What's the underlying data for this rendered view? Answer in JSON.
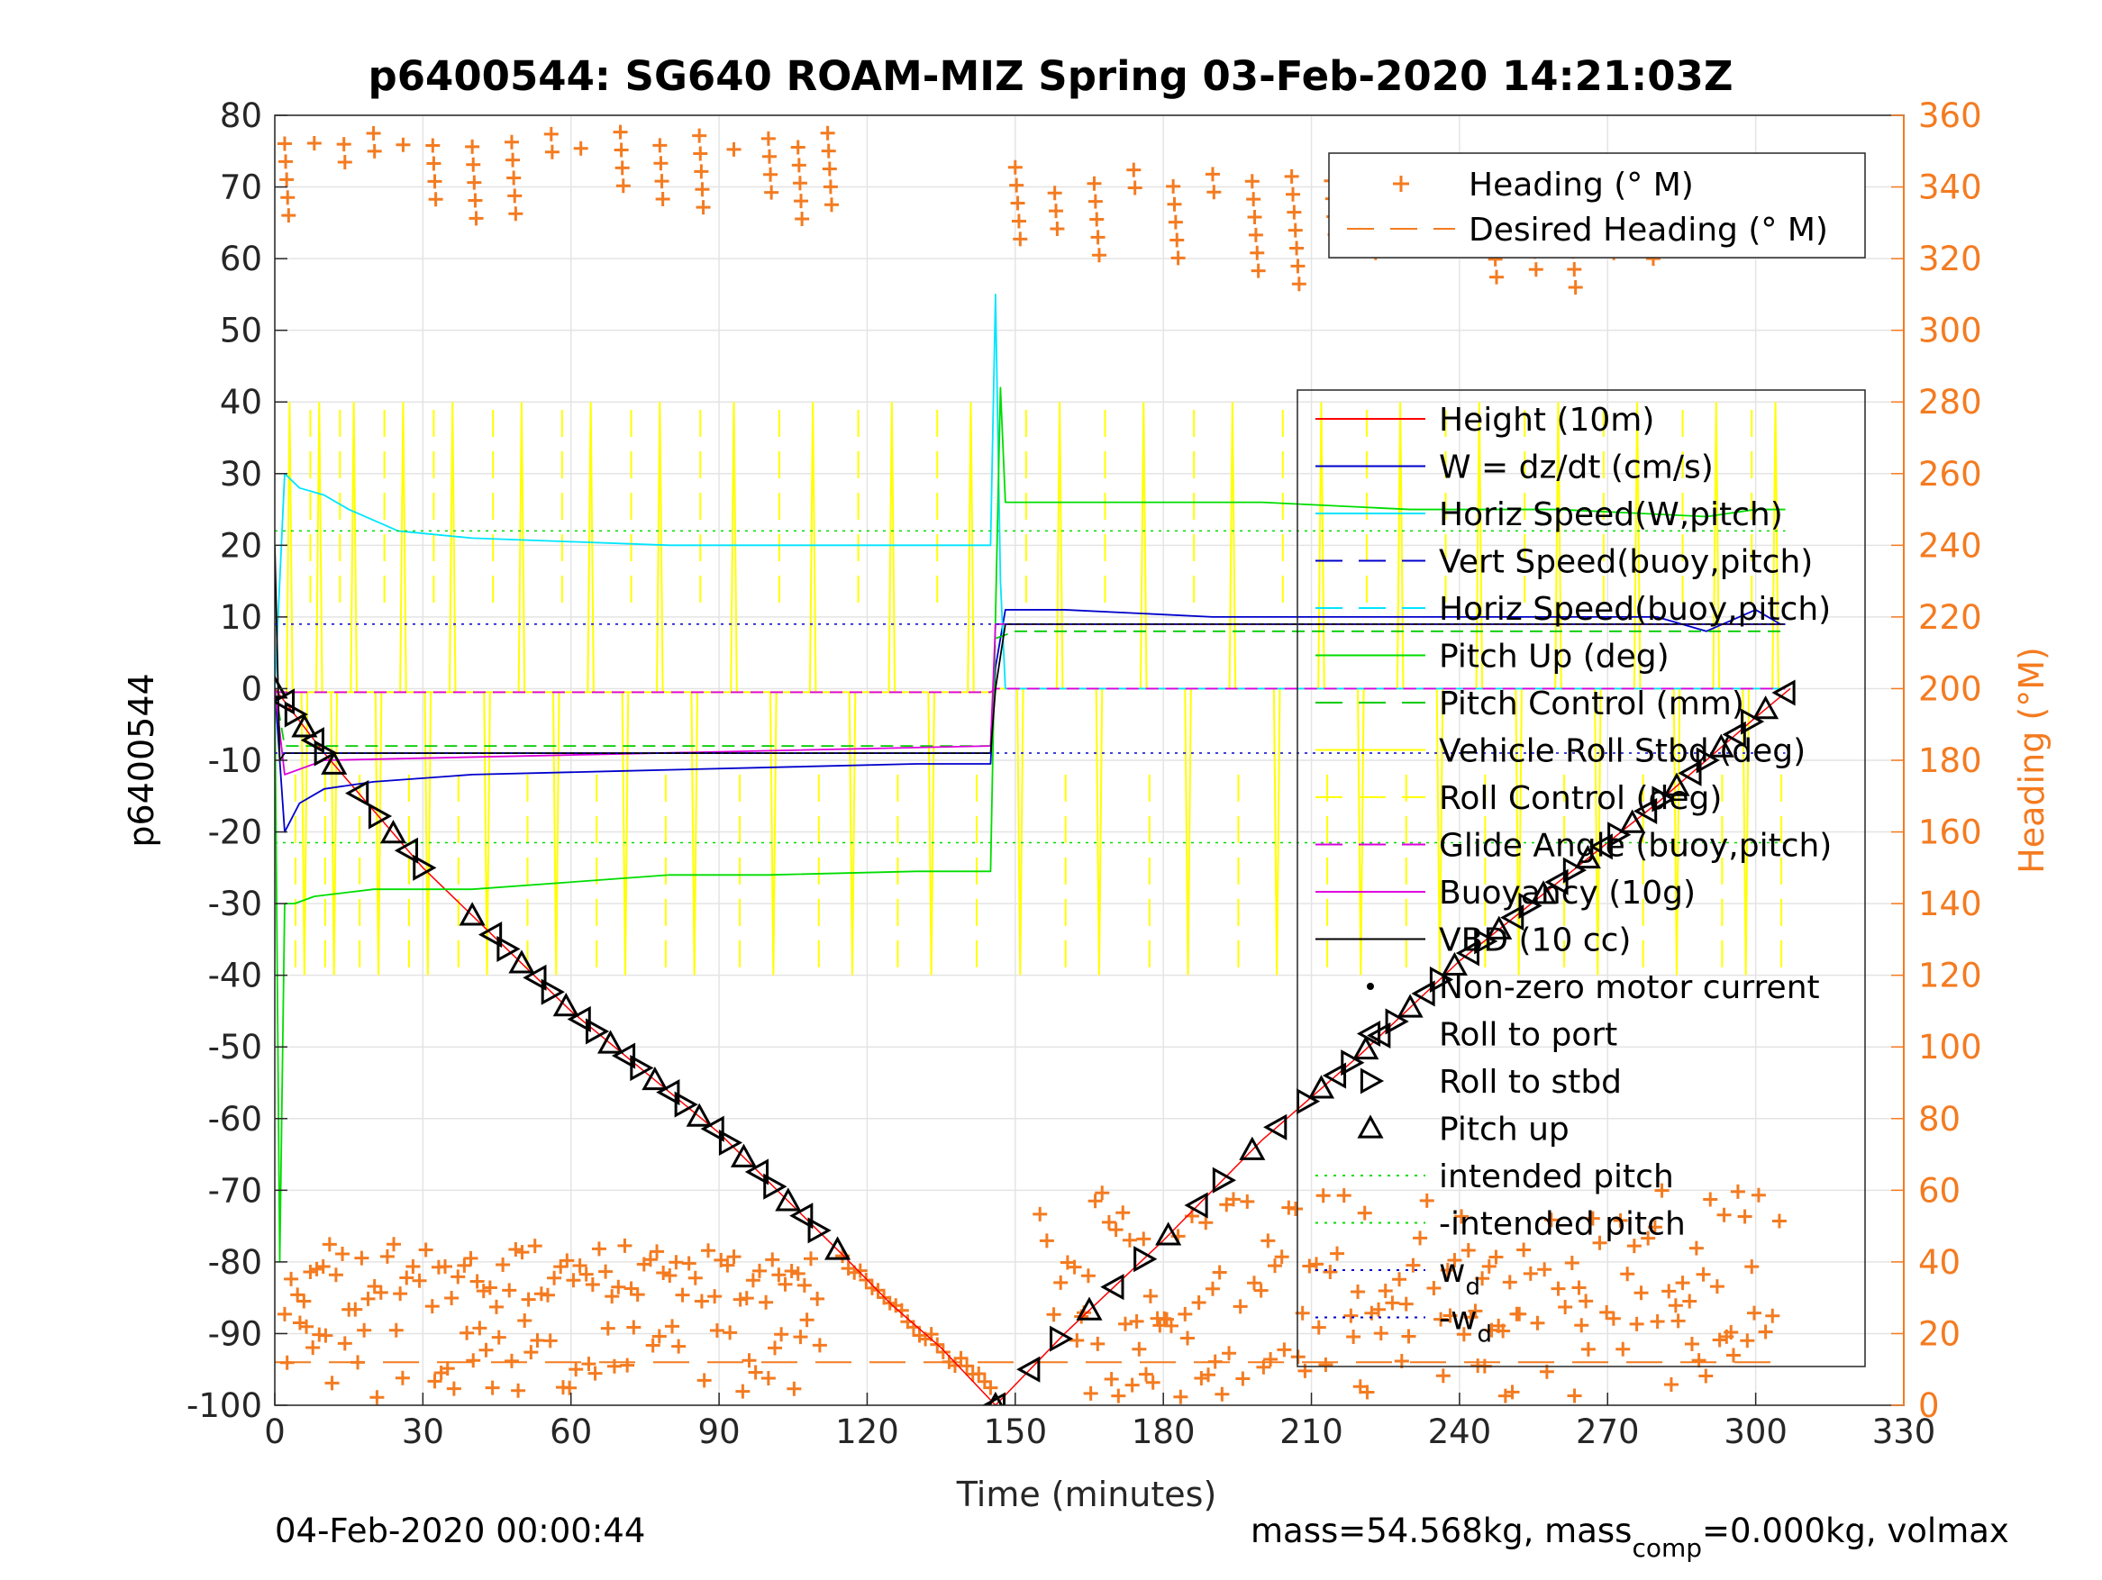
{
  "chart_data": {
    "type": "line",
    "title": "p6400544: SG640 ROAM-MIZ Spring 03-Feb-2020 14:21:03Z",
    "xlabel": "Time (minutes)",
    "ylabel_left": "p6400544",
    "ylabel_right": "Heading (°M)",
    "xlim": [
      0,
      330
    ],
    "ylim_left": [
      -100,
      80
    ],
    "ylim_right": [
      0,
      360
    ],
    "x_ticks": [
      0,
      30,
      60,
      90,
      120,
      150,
      180,
      210,
      240,
      270,
      300,
      330
    ],
    "y_ticks_left": [
      80,
      70,
      60,
      50,
      40,
      30,
      20,
      10,
      0,
      -10,
      -20,
      -30,
      -40,
      -50,
      -60,
      -70,
      -80,
      -90,
      -100
    ],
    "y_ticks_right": [
      360,
      340,
      320,
      300,
      280,
      260,
      240,
      220,
      200,
      180,
      160,
      140,
      120,
      100,
      80,
      60,
      40,
      20,
      0
    ],
    "grid": true,
    "footer_left": "04-Feb-2020 00:00:44",
    "footer_right_prefix": "mass=54.568kg, mass",
    "footer_right_sub": "comp",
    "footer_right_suffix": "=0.000kg, volmax",
    "legend_heading": {
      "placement": "top-right",
      "entries": [
        {
          "label": "Heading (° M)",
          "color": "#f47b20",
          "style": "plus"
        },
        {
          "label": "Desired Heading (° M)",
          "color": "#f47b20",
          "style": "dashed"
        }
      ]
    },
    "legend_main": {
      "placement": "right",
      "entries": [
        {
          "label": "Height (10m)",
          "color": "#ff0000",
          "style": "solid"
        },
        {
          "label": "W = dz/dt (cm/s)",
          "color": "#0000cc",
          "style": "solid"
        },
        {
          "label": "Horiz Speed(W,pitch)",
          "color": "#00e5ff",
          "style": "solid"
        },
        {
          "label": "Vert Speed(buoy,pitch)",
          "color": "#0000cc",
          "style": "dashed"
        },
        {
          "label": "Horiz Speed(buoy,pitch)",
          "color": "#00e5ff",
          "style": "dashed"
        },
        {
          "label": "Pitch Up (deg)",
          "color": "#00dd00",
          "style": "solid"
        },
        {
          "label": "Pitch Control (mm)",
          "color": "#00cc00",
          "style": "dashed"
        },
        {
          "label": "Vehicle Roll Stbd (deg)",
          "color": "#ffff00",
          "style": "solid"
        },
        {
          "label": "Roll Control (deg)",
          "color": "#ffff00",
          "style": "dashed"
        },
        {
          "label": "Glide Angle (buoy,pitch)",
          "color": "#dd00dd",
          "style": "dashed"
        },
        {
          "label": "Buoyancy (10g)",
          "color": "#dd00dd",
          "style": "solid"
        },
        {
          "label": "VBD (10 cc)",
          "color": "#000000",
          "style": "solid"
        },
        {
          "label": "Non-zero motor current",
          "color": "#000000",
          "style": "dot"
        },
        {
          "label": "Roll to port",
          "color": "#000000",
          "style": "tri-left"
        },
        {
          "label": "Roll to stbd",
          "color": "#000000",
          "style": "tri-right"
        },
        {
          "label": "Pitch up",
          "color": "#000000",
          "style": "tri-up"
        },
        {
          "label": "intended pitch",
          "color": "#00dd00",
          "style": "dotted"
        },
        {
          "label": "-intended pitch",
          "color": "#00dd00",
          "style": "dotted"
        },
        {
          "label": "w",
          "sub": "d",
          "color": "#0000cc",
          "style": "dotted"
        },
        {
          "label": "-w",
          "sub": "d",
          "color": "#0000cc",
          "style": "dotted"
        }
      ]
    },
    "series": [
      {
        "name": "Height (10m)",
        "color": "#ff0000",
        "width": 1.5,
        "x": [
          0,
          10,
          30,
          60,
          90,
          115,
          125,
          135,
          146,
          160,
          180,
          200,
          220,
          240,
          260,
          280,
          300,
          307
        ],
        "y": [
          0,
          -9,
          -25,
          -45,
          -62,
          -79,
          -86,
          -92,
          -100,
          -90,
          -77,
          -63,
          -51,
          -38,
          -27,
          -16,
          -4,
          0
        ]
      },
      {
        "name": "W = dz/dt (cm/s)",
        "color": "#0000cc",
        "width": 1.8,
        "x": [
          0,
          2,
          5,
          10,
          20,
          40,
          70,
          100,
          130,
          145,
          146,
          148,
          160,
          190,
          220,
          250,
          280,
          290,
          300,
          305
        ],
        "y": [
          0,
          -20,
          -16,
          -14,
          -13,
          -12,
          -11.5,
          -11,
          -10.5,
          -10.5,
          3,
          11,
          11,
          10,
          10,
          10,
          10,
          8,
          11,
          9
        ]
      },
      {
        "name": "Horiz Speed(W,pitch)",
        "color": "#00e5ff",
        "width": 1.8,
        "x": [
          0,
          2,
          5,
          10,
          15,
          25,
          40,
          60,
          80,
          100,
          130,
          145,
          146,
          147,
          148,
          150,
          200,
          250,
          300,
          306
        ],
        "y": [
          0,
          30,
          28,
          27,
          25,
          22,
          21,
          20.5,
          20,
          20,
          20,
          20,
          55,
          15,
          0,
          0,
          0,
          0,
          0,
          0
        ]
      },
      {
        "name": "Pitch Up (deg)",
        "color": "#00dd00",
        "width": 1.8,
        "x": [
          0,
          1,
          2,
          4,
          8,
          20,
          40,
          60,
          80,
          100,
          130,
          145,
          146,
          147,
          148,
          160,
          180,
          200,
          230,
          260,
          290,
          300,
          306
        ],
        "y": [
          0,
          -80,
          -30,
          -30,
          -29,
          -28,
          -28,
          -27,
          -26,
          -26,
          -25.5,
          -25.5,
          10,
          42,
          26,
          26,
          26,
          26,
          25,
          25,
          24,
          25,
          25
        ]
      },
      {
        "name": "Pitch Control (mm)",
        "color": "#00cc00",
        "width": 1.8,
        "dash": "14 8",
        "x": [
          0,
          2,
          10,
          145,
          146,
          150,
          300,
          306
        ],
        "y": [
          0,
          -8,
          -8,
          -8,
          7,
          8,
          8,
          8
        ]
      },
      {
        "name": "Glide Angle (buoy,pitch)",
        "color": "#dd00dd",
        "width": 1.8,
        "dash": "14 8",
        "x": [
          0,
          145,
          146,
          306
        ],
        "y": [
          -0.5,
          -0.5,
          0,
          0
        ]
      },
      {
        "name": "Buoyancy (10g)",
        "color": "#dd00dd",
        "width": 1.8,
        "x": [
          0,
          2,
          10,
          145,
          146,
          306
        ],
        "y": [
          0,
          -12,
          -10,
          -8,
          9,
          9
        ]
      },
      {
        "name": "VBD (10 cc)",
        "color": "#000000",
        "width": 1.8,
        "x": [
          0,
          1,
          2,
          10,
          145,
          146,
          148,
          306
        ],
        "y": [
          20,
          -10,
          -9,
          -9,
          -9,
          0,
          9,
          9
        ]
      },
      {
        "name": "intended pitch",
        "color": "#00dd00",
        "width": 1.5,
        "dash": "3 6",
        "x": [
          0,
          306
        ],
        "y": [
          22,
          22
        ]
      },
      {
        "name": "-intended pitch",
        "color": "#00dd00",
        "width": 1.5,
        "dash": "3 6",
        "x": [
          0,
          306
        ],
        "y": [
          -21.5,
          -21.5
        ]
      },
      {
        "name": "w",
        "color": "#0000cc",
        "width": 1.5,
        "dash": "3 6",
        "x": [
          0,
          306
        ],
        "y": [
          9,
          9
        ]
      },
      {
        "name": "-w",
        "color": "#0000cc",
        "width": 1.5,
        "dash": "3 6",
        "x": [
          0,
          306
        ],
        "y": [
          -9,
          -9
        ]
      }
    ],
    "roll_spikes": {
      "name": "Vehicle Roll Stbd (deg)",
      "color": "#ffff00",
      "y_top": 40,
      "y_bottom": -40,
      "baseline_dive": -0.5,
      "baseline_climb": 0,
      "x": [
        3,
        6,
        9,
        12,
        16,
        21,
        26,
        31,
        36,
        43,
        50,
        57,
        64,
        71,
        78,
        85,
        93,
        101,
        109,
        117,
        125,
        133,
        141,
        151,
        159,
        167,
        176,
        185,
        194,
        203,
        212,
        220,
        228,
        236,
        244,
        252,
        260,
        268,
        276,
        284,
        292,
        298,
        304
      ]
    },
    "pitch_markers": {
      "color": "#000000",
      "dive_x": [
        0,
        2,
        4,
        6,
        8,
        10,
        12,
        17,
        21,
        24,
        27,
        30,
        40,
        44,
        47,
        50,
        53,
        56,
        59,
        62,
        65,
        68,
        71,
        74,
        77,
        80,
        83,
        86,
        89,
        92,
        95,
        98,
        101,
        104,
        107,
        110,
        114,
        146
      ],
      "climb_x": [
        146,
        153,
        159,
        165,
        170,
        176,
        181,
        187,
        192,
        198,
        203,
        209,
        212,
        215,
        218,
        221,
        224,
        227,
        230,
        233,
        236,
        239,
        242,
        245,
        248,
        251,
        254,
        257,
        260,
        263,
        266,
        269,
        272,
        275,
        278,
        281,
        284,
        287,
        290,
        293,
        296,
        299,
        302,
        306
      ]
    },
    "heading_points": {
      "color": "#f47b20",
      "desired_heading": [
        {
          "x": [
            0,
            306
          ],
          "y": 12
        }
      ],
      "dive_top_columns_x": [
        2,
        8,
        14,
        20,
        26,
        32,
        40,
        48,
        56,
        62,
        70,
        78,
        86,
        93,
        100,
        106,
        112
      ],
      "climb_top_columns_x": [
        150,
        158,
        166,
        174,
        182,
        190,
        198,
        206,
        214,
        222,
        230,
        238,
        246,
        254,
        262,
        270,
        278,
        286,
        294,
        300
      ],
      "dive_bottom_x_range": [
        2,
        110
      ],
      "climb_bottom_x_range": [
        155,
        306
      ]
    }
  }
}
